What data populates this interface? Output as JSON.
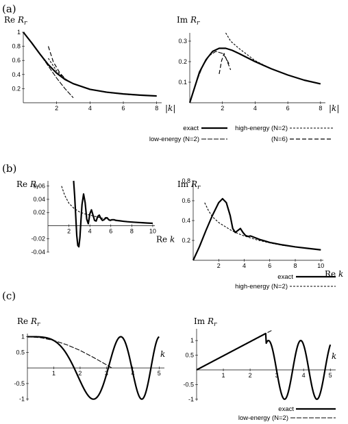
{
  "panels": [
    {
      "label": "(a)"
    },
    {
      "label": "(b)"
    },
    {
      "label": "(c)"
    }
  ],
  "legends": [
    {
      "entries": [
        {
          "text": "exact",
          "dash": "solid",
          "width": 2.2
        },
        {
          "text": "low-energy (N=2)",
          "dash": "7,2",
          "width": 1.1
        },
        {
          "text": "high-energy (N=2)",
          "dash": "3,2",
          "width": 1.1
        },
        {
          "text": "(N=6)",
          "dash": "6,3",
          "width": 1.2
        }
      ]
    },
    {
      "entries": [
        {
          "text": "exact",
          "dash": "solid",
          "width": 2.2
        },
        {
          "text": "high-energy (N=2)",
          "dash": "3,2",
          "width": 1.1
        }
      ]
    },
    {
      "entries": [
        {
          "text": "exact",
          "dash": "solid",
          "width": 2.2
        },
        {
          "text": "low-energy (N=2)",
          "dash": "7,2",
          "width": 1.1
        }
      ]
    }
  ],
  "chart_data": [
    {
      "type": "line",
      "ylabel_main": "Re ",
      "ylabel_var": "R",
      "ylabel_sub": "r",
      "xlabel": "|k|",
      "xlim": [
        0,
        8.3
      ],
      "ylim": [
        0,
        1.0
      ],
      "xticks": [
        2,
        4,
        6,
        8
      ],
      "yticks": [
        0.2,
        0.4,
        0.6,
        0.8,
        1
      ],
      "ytick_labels": [
        "0.2",
        "0.4",
        "0.6",
        "0.8",
        "1"
      ],
      "series": [
        {
          "name": "exact",
          "x": [
            0,
            0.5,
            1,
            1.5,
            2,
            2.5,
            3,
            4,
            5,
            6,
            7,
            8
          ],
          "y": [
            1.0,
            0.85,
            0.69,
            0.54,
            0.42,
            0.33,
            0.27,
            0.19,
            0.15,
            0.125,
            0.108,
            0.096
          ]
        },
        {
          "name": "low-energy (N=2)",
          "x": [
            0,
            0.5,
            1,
            1.5,
            2,
            2.5,
            3
          ],
          "y": [
            1.0,
            0.85,
            0.69,
            0.52,
            0.35,
            0.2,
            0.07
          ]
        },
        {
          "name": "high-energy (N=2)",
          "x": [
            1.5,
            2,
            2.5,
            3,
            4,
            5,
            6,
            7,
            8
          ],
          "y": [
            0.63,
            0.45,
            0.34,
            0.27,
            0.19,
            0.145,
            0.12,
            0.105,
            0.094
          ]
        },
        {
          "name": "(N=6)",
          "x": [
            1.5,
            1.8,
            2.2,
            2.6,
            3
          ],
          "y": [
            0.8,
            0.58,
            0.42,
            0.32,
            0.27
          ]
        }
      ]
    },
    {
      "type": "line",
      "ylabel_main": "Im ",
      "ylabel_var": "R",
      "ylabel_sub": "r",
      "xlabel": "|k|",
      "xlim": [
        0,
        8.3
      ],
      "ylim": [
        0,
        0.34
      ],
      "xticks": [
        2,
        4,
        6,
        8
      ],
      "yticks": [
        0.1,
        0.2,
        0.3
      ],
      "ytick_labels": [
        "0.1",
        "0.2",
        "0.3"
      ],
      "series": [
        {
          "name": "exact",
          "x": [
            0,
            0.3,
            0.6,
            1,
            1.4,
            1.8,
            2.2,
            2.6,
            3,
            4,
            5,
            6,
            7,
            8
          ],
          "y": [
            0,
            0.075,
            0.15,
            0.21,
            0.25,
            0.265,
            0.265,
            0.255,
            0.24,
            0.2,
            0.165,
            0.135,
            0.11,
            0.092
          ]
        },
        {
          "name": "low-energy (N=2)",
          "x": [
            0,
            0.4,
            0.8,
            1.2,
            1.6,
            2,
            2.2,
            2.4
          ],
          "y": [
            0,
            0.1,
            0.18,
            0.23,
            0.25,
            0.24,
            0.22,
            0.19
          ]
        },
        {
          "name": "high-energy (N=2)",
          "x": [
            2.2,
            2.5,
            3,
            4,
            5,
            6,
            7,
            8
          ],
          "y": [
            0.34,
            0.3,
            0.265,
            0.205,
            0.165,
            0.135,
            0.11,
            0.093
          ]
        },
        {
          "name": "(N=6)",
          "x": [
            1.8,
            1.95,
            2.1,
            2.3,
            2.5
          ],
          "y": [
            0.14,
            0.205,
            0.24,
            0.2,
            0.16
          ]
        }
      ]
    },
    {
      "type": "line",
      "ylabel_main": "Re ",
      "ylabel_var": "R",
      "ylabel_sub": "r",
      "xlabel": "Re k",
      "xlim": [
        0,
        10.2
      ],
      "ylim": [
        -0.04,
        0.068
      ],
      "xticks": [
        2,
        4,
        6,
        8,
        10
      ],
      "yticks": [
        -0.04,
        -0.02,
        0.02,
        0.04,
        0.06
      ],
      "ytick_labels": [
        "-0.04",
        "-0.02",
        "0.02",
        "0.04",
        "0.06"
      ],
      "series": [
        {
          "name": "exact",
          "x": [
            2.45,
            2.55,
            2.65,
            2.75,
            2.85,
            2.95,
            3.05,
            3.15,
            3.25,
            3.4,
            3.55,
            3.7,
            3.85,
            4.0,
            4.15,
            4.3,
            4.45,
            4.6,
            4.75,
            4.9,
            5.05,
            5.2,
            5.35,
            5.5,
            5.65,
            5.8,
            5.95,
            6.1,
            6.3,
            6.5,
            6.8,
            7.2,
            7.6,
            8,
            8.5,
            9,
            9.5,
            10
          ],
          "y": [
            0.068,
            0.045,
            0.015,
            -0.015,
            -0.03,
            -0.032,
            -0.018,
            0.008,
            0.032,
            0.048,
            0.035,
            0.01,
            0.003,
            0.018,
            0.024,
            0.016,
            0.008,
            0.007,
            0.014,
            0.016,
            0.011,
            0.008,
            0.009,
            0.012,
            0.012,
            0.009,
            0.008,
            0.009,
            0.009,
            0.008,
            0.0075,
            0.0067,
            0.006,
            0.0055,
            0.005,
            0.0045,
            0.004,
            0.0036
          ]
        },
        {
          "name": "high-energy (N=2)",
          "x": [
            1.3,
            1.6,
            2,
            2.5,
            3,
            3.5,
            4,
            5,
            6,
            7,
            8,
            9,
            10
          ],
          "y": [
            0.06,
            0.046,
            0.034,
            0.026,
            0.021,
            0.018,
            0.016,
            0.012,
            0.009,
            0.0072,
            0.0058,
            0.0047,
            0.0038
          ]
        }
      ]
    },
    {
      "type": "line",
      "ylabel_main": "Im ",
      "ylabel_var": "R",
      "ylabel_sub": "r",
      "xlabel": "Re k",
      "xlim": [
        0,
        10.2
      ],
      "ylim": [
        0,
        0.8
      ],
      "xticks": [
        2,
        4,
        6,
        8,
        10
      ],
      "yticks": [
        0.2,
        0.4,
        0.6,
        0.8
      ],
      "ytick_labels": [
        "0.2",
        "0.4",
        "0.6",
        "0.8"
      ],
      "series": [
        {
          "name": "exact",
          "x": [
            0,
            0.5,
            1,
            1.5,
            2,
            2.3,
            2.6,
            2.9,
            3.1,
            3.3,
            3.5,
            3.7,
            3.9,
            4.1,
            4.3,
            4.5,
            4.8,
            5.2,
            6,
            7,
            8,
            9,
            10
          ],
          "y": [
            0,
            0.14,
            0.3,
            0.45,
            0.58,
            0.62,
            0.58,
            0.45,
            0.32,
            0.28,
            0.3,
            0.32,
            0.28,
            0.25,
            0.24,
            0.245,
            0.23,
            0.21,
            0.18,
            0.155,
            0.135,
            0.12,
            0.105
          ]
        },
        {
          "name": "high-energy (N=2)",
          "x": [
            0.9,
            1.2,
            1.5,
            2,
            2.5,
            3,
            3.5,
            4,
            5,
            6,
            7,
            8,
            9,
            10
          ],
          "y": [
            0.58,
            0.5,
            0.44,
            0.38,
            0.34,
            0.3,
            0.27,
            0.245,
            0.205,
            0.175,
            0.15,
            0.135,
            0.12,
            0.105
          ]
        }
      ]
    },
    {
      "type": "line",
      "ylabel_main": "Re ",
      "ylabel_var": "R",
      "ylabel_sub": "r",
      "xlabel": "k",
      "xlim": [
        0,
        5.2
      ],
      "ylim": [
        -1.05,
        1.1
      ],
      "xticks": [
        1,
        2,
        3,
        4,
        5
      ],
      "yticks": [
        -1,
        -0.5,
        0.5,
        1
      ],
      "ytick_labels": [
        "-1",
        "-0.5",
        "0.5",
        "1"
      ],
      "series": [
        {
          "name": "exact",
          "fn": "cos_sq",
          "x_from": 0,
          "x_to": 5.0
        },
        {
          "name": "low-energy (N=2)",
          "x": [
            0,
            0.5,
            1,
            1.5,
            2,
            2.5,
            3,
            3.2
          ],
          "y": [
            1,
            0.97,
            0.88,
            0.74,
            0.56,
            0.34,
            0.1,
            0.0
          ]
        }
      ]
    },
    {
      "type": "line",
      "ylabel_main": "Im ",
      "ylabel_var": "R",
      "ylabel_sub": "r",
      "xlabel": "k",
      "xlim": [
        0,
        5.2
      ],
      "ylim": [
        -1.05,
        1.4
      ],
      "xticks": [
        1,
        2,
        3,
        4,
        5
      ],
      "yticks": [
        -1,
        -0.5,
        0.5,
        1
      ],
      "ytick_labels": [
        "-1",
        "-0.5",
        "0.5",
        "1"
      ],
      "series": [
        {
          "name": "exact",
          "fn": "linear_then_cos",
          "x_from": 0,
          "x_to": 5.0
        },
        {
          "name": "low-energy (N=2)",
          "x": [
            0,
            0.5,
            1,
            1.5,
            2,
            2.5,
            2.8
          ],
          "y": [
            0,
            0.24,
            0.48,
            0.72,
            0.96,
            1.2,
            1.34
          ]
        }
      ]
    }
  ]
}
